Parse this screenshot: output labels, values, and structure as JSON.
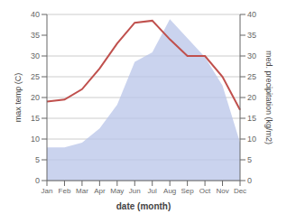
{
  "chart_data": {
    "type": "line",
    "categories": [
      "Jan",
      "Feb",
      "Mar",
      "Apr",
      "May",
      "Jun",
      "Jul",
      "Aug",
      "Sep",
      "Oct",
      "Nov",
      "Dec"
    ],
    "series": [
      {
        "type": "area",
        "color": "#b8c4e8",
        "values": [
          8,
          8,
          9.142857142857142,
          12.571428571428571,
          18.285714285714285,
          28.571428571428573,
          30.857142857142858,
          38.857142857142854,
          34.285714285714285,
          29.714285714285715,
          22.857142857142858,
          9.142857142857142
        ]
      },
      {
        "type": "line",
        "color": "#c0504d",
        "axis": "y2",
        "values": [
          19,
          19.5,
          22,
          27,
          33,
          38,
          38.5,
          34,
          30,
          30,
          25,
          17
        ]
      }
    ],
    "xlabel": "date (month)",
    "ylabel": "max temp (C)",
    "y2label": "med. precipitation (kg/m2)",
    "ylim": [
      0,
      40
    ],
    "yticks": [
      0,
      5,
      10,
      15,
      20,
      25,
      30,
      35,
      40
    ],
    "y2lim": [
      0,
      40
    ],
    "y2ticks": [
      0,
      5,
      10,
      15,
      20,
      25,
      30,
      35,
      40
    ],
    "grid": true
  }
}
